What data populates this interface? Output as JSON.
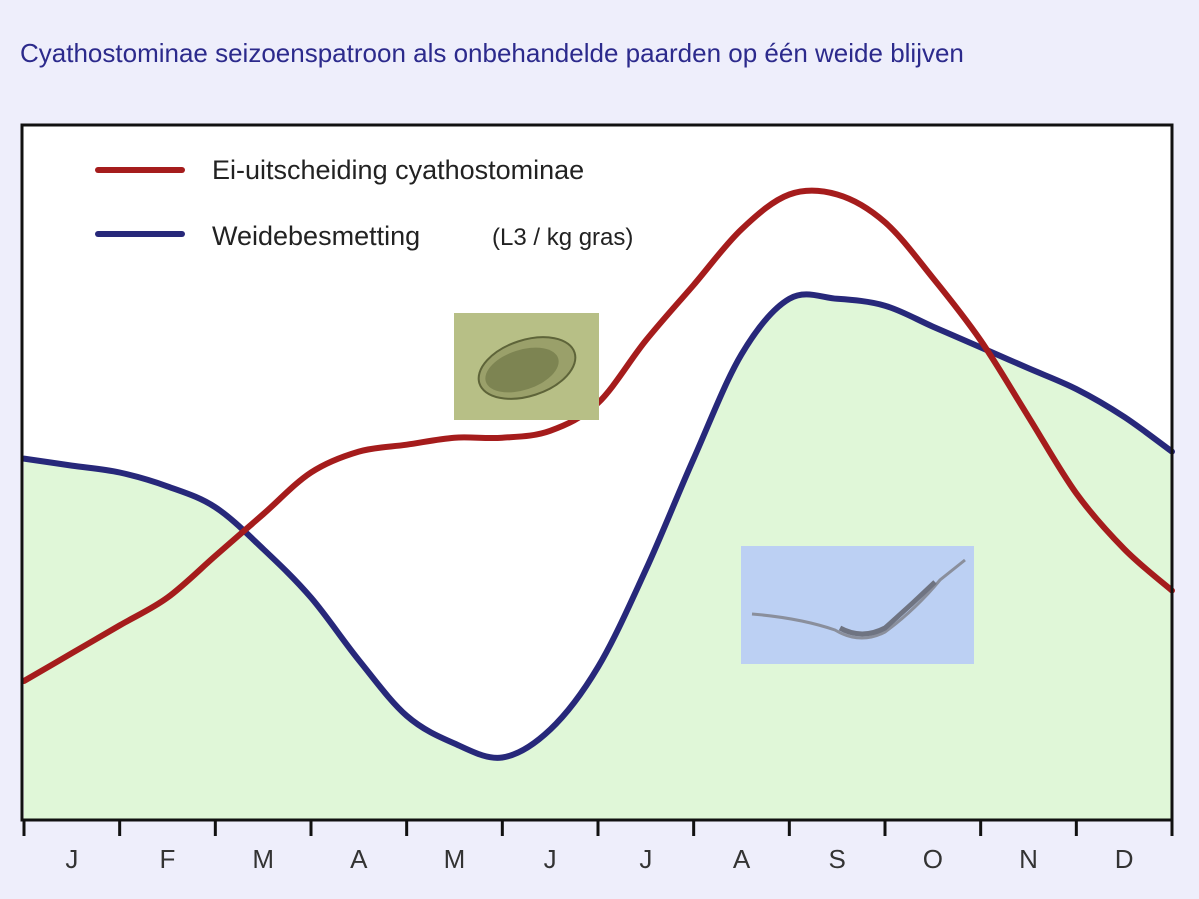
{
  "title": "Cyathostominae seizoenspatroon als onbehandelde paarden op één weide blijven",
  "chart_data": {
    "type": "line",
    "categories": [
      "J",
      "F",
      "M",
      "A",
      "M",
      "J",
      "J",
      "A",
      "S",
      "O",
      "N",
      "D"
    ],
    "ylim": [
      0,
      100
    ],
    "grid": false,
    "legend_position": "top-left",
    "series": [
      {
        "name": "Ei-uitscheiding cyathostominae",
        "color": "#a51c1c",
        "x": [
          0,
          0.5,
          1,
          1.5,
          2,
          2.5,
          3,
          3.5,
          4,
          4.5,
          5,
          5.5,
          6,
          6.5,
          7,
          7.5,
          8,
          8.5,
          9,
          9.5,
          10,
          10.5,
          11,
          11.5,
          12
        ],
        "values": [
          20,
          24,
          28,
          32,
          38,
          44,
          50,
          53,
          54,
          55,
          55,
          56,
          60,
          69,
          77,
          85,
          90,
          90,
          86,
          78,
          69,
          58,
          47,
          39,
          33
        ]
      },
      {
        "name": "Weidebesmetting",
        "name_suffix": "(L3 / kg gras)",
        "color": "#27287a",
        "fill": "#e0f7d8",
        "x": [
          0,
          0.5,
          1,
          1.5,
          2,
          2.5,
          3,
          3.5,
          4,
          4.5,
          5,
          5.5,
          6,
          6.5,
          7,
          7.5,
          8,
          8.5,
          9,
          9.5,
          10,
          10.5,
          11,
          11.5,
          12
        ],
        "values": [
          52,
          51,
          50,
          48,
          45,
          39,
          32,
          23,
          15,
          11,
          9,
          13,
          22,
          36,
          52,
          67,
          75,
          75,
          74,
          71,
          68,
          65,
          62,
          58,
          53
        ]
      }
    ]
  }
}
